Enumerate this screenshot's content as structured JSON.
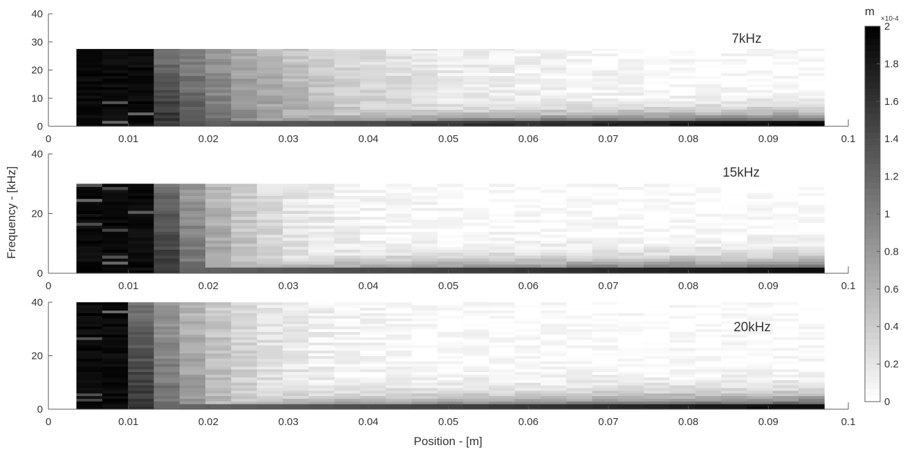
{
  "chart_data": {
    "type": "heatmap",
    "xlabel": "Position - [m]",
    "ylabel": "Frequency - [kHz]",
    "colormap": "gray_reversed",
    "x_range": [
      0,
      0.1
    ],
    "x_ticks": [
      0,
      0.01,
      0.02,
      0.03,
      0.04,
      0.05,
      0.06,
      0.07,
      0.08,
      0.09,
      0.1
    ],
    "x_tick_labels": [
      "0",
      "0.01",
      "0.02",
      "0.03",
      "0.04",
      "0.05",
      "0.06",
      "0.07",
      "0.08",
      "0.09",
      "0.1"
    ],
    "x_data_extent": [
      0.0035,
      0.097
    ],
    "columns": 29,
    "colorbar": {
      "unit": "m",
      "exponent": "×10-4",
      "range": [
        0,
        2
      ],
      "ticks": [
        0,
        0.2,
        0.4,
        0.6,
        0.8,
        1,
        1.2,
        1.4,
        1.6,
        1.8,
        2
      ],
      "tick_labels": [
        "0",
        "0.2",
        "0.4",
        "0.6",
        "0.8",
        "1",
        "1.2",
        "1.4",
        "1.6",
        "1.8",
        "2"
      ]
    },
    "panels": [
      {
        "title": "7kHz",
        "ylim": [
          0,
          40
        ],
        "y_ticks": [
          0,
          10,
          20,
          30,
          40
        ],
        "y_tick_labels": [
          "0",
          "10",
          "20",
          "30",
          "40"
        ],
        "freq_max": 27.5,
        "sat_cols": 3,
        "low_band_kHz": 3.5,
        "low_band_start": 0.55,
        "low_band_growth": 0.45,
        "high_freq_decay": 0.045
      },
      {
        "title": "15kHz",
        "ylim": [
          0,
          40
        ],
        "y_ticks": [
          0,
          20,
          40
        ],
        "y_tick_labels": [
          "0",
          "20",
          "40"
        ],
        "freq_max": 30,
        "sat_cols": 3,
        "low_band_kHz": 3.5,
        "low_band_start": 0.4,
        "low_band_growth": 0.5,
        "high_freq_decay": 0.09
      },
      {
        "title": "20kHz",
        "ylim": [
          0,
          40
        ],
        "y_ticks": [
          0,
          20,
          40
        ],
        "y_tick_labels": [
          "0",
          "20",
          "40"
        ],
        "freq_max": 40,
        "sat_cols": 2,
        "low_band_kHz": 4,
        "low_band_start": 0.35,
        "low_band_growth": 0.6,
        "high_freq_decay": 0.085
      }
    ]
  }
}
